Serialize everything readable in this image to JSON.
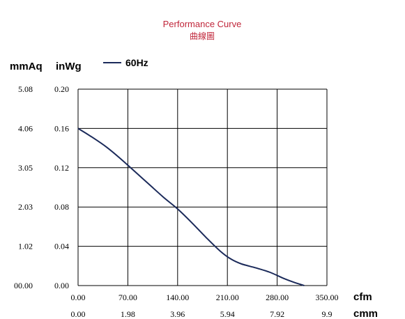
{
  "colors": {
    "title": "#c0263a",
    "series": "#1b2a5a",
    "grid": "#000000",
    "text": "#000000"
  },
  "chart_data": {
    "type": "line",
    "title": "Performance Curve",
    "subtitle": "曲線圖",
    "y_unit_left": "mmAq",
    "y_unit_right": "inWg",
    "x_unit_top": "cfm",
    "x_unit_bottom": "cmm",
    "grid": true,
    "legend_position": "top-left",
    "x_ticks_cfm": [
      "0.00",
      "70.00",
      "140.00",
      "210.00",
      "280.00",
      "350.00"
    ],
    "x_ticks_cmm": [
      "0.00",
      "1.98",
      "3.96",
      "5.94",
      "7.92",
      "9.9"
    ],
    "y_ticks_mmaq": [
      "00.00",
      "1.02",
      "2.03",
      "3.05",
      "4.06",
      "5.08"
    ],
    "y_ticks_inwg": [
      "0.00",
      "0.04",
      "0.08",
      "0.12",
      "0.16",
      "0.20"
    ],
    "xlim": [
      0,
      350
    ],
    "ylim": [
      0,
      0.2
    ],
    "series": [
      {
        "name": "60Hz",
        "x": [
          0,
          20,
          40,
          60,
          80,
          100,
          120,
          140,
          160,
          180,
          200,
          215,
          230,
          250,
          270,
          290,
          305,
          318
        ],
        "y": [
          0.16,
          0.151,
          0.141,
          0.129,
          0.116,
          0.103,
          0.09,
          0.078,
          0.064,
          0.049,
          0.035,
          0.027,
          0.022,
          0.018,
          0.0135,
          0.007,
          0.003,
          0.0
        ]
      }
    ]
  }
}
